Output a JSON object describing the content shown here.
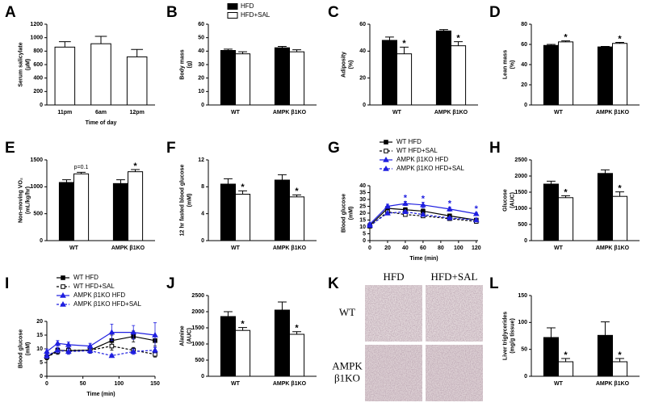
{
  "chart_data": [
    {
      "panel": "A",
      "type": "bar",
      "ylabel": [
        "Serum salicylate",
        "(µM)"
      ],
      "xlabel": "Time of day",
      "categories": [
        "11pm",
        "6am",
        "12pm"
      ],
      "values": [
        860,
        910,
        715
      ],
      "errors": [
        80,
        110,
        110
      ],
      "color": "#ffffff",
      "ylim": [
        0,
        1200
      ],
      "yticks": [
        0,
        200,
        400,
        600,
        800,
        1000,
        1200
      ]
    },
    {
      "panel": "B",
      "type": "bar",
      "ylabel": [
        "Body mass",
        "(g)"
      ],
      "categories": [
        "WT",
        "AMPK β1KO"
      ],
      "series": [
        {
          "name": "HFD",
          "color": "#000000",
          "values": [
            40.5,
            42.5
          ],
          "errors": [
            1,
            1
          ]
        },
        {
          "name": "HFD+SAL",
          "color": "#ffffff",
          "values": [
            38,
            39.5
          ],
          "errors": [
            1.5,
            1.5
          ]
        }
      ],
      "ylim": [
        0,
        60
      ],
      "yticks": [
        0,
        10,
        20,
        30,
        40,
        50,
        60
      ],
      "legend": "top"
    },
    {
      "panel": "C",
      "type": "bar",
      "ylabel": [
        "Adiposity",
        "(%)"
      ],
      "categories": [
        "WT",
        "AMPK β1KO"
      ],
      "series": [
        {
          "color": "#000000",
          "values": [
            48,
            55
          ],
          "errors": [
            2.5,
            1
          ]
        },
        {
          "color": "#ffffff",
          "values": [
            38,
            44
          ],
          "errors": [
            5,
            3
          ]
        }
      ],
      "ylim": [
        0,
        60
      ],
      "yticks": [
        0,
        20,
        40,
        60
      ],
      "annotations": [
        {
          "text": "*",
          "category": "WT"
        },
        {
          "text": "*",
          "category": "AMPK β1KO"
        }
      ]
    },
    {
      "panel": "D",
      "type": "bar",
      "ylabel": [
        "Lean mass",
        "(%)"
      ],
      "categories": [
        "WT",
        "AMPK β1KO"
      ],
      "series": [
        {
          "color": "#000000",
          "values": [
            59,
            57.5
          ],
          "errors": [
            1,
            0.5
          ]
        },
        {
          "color": "#ffffff",
          "values": [
            62.5,
            61
          ],
          "errors": [
            1,
            1
          ]
        }
      ],
      "ylim": [
        0,
        80
      ],
      "yticks": [
        0,
        20,
        40,
        60,
        80
      ],
      "annotations": [
        {
          "text": "*",
          "category": "WT"
        },
        {
          "text": "*",
          "category": "AMPK β1KO"
        }
      ]
    },
    {
      "panel": "E",
      "type": "bar",
      "ylabel": [
        "Non-moving VO₂",
        "(mL/kg/hr)"
      ],
      "categories": [
        "WT",
        "AMPK β1KO"
      ],
      "series": [
        {
          "color": "#000000",
          "values": [
            1080,
            1060
          ],
          "errors": [
            50,
            70
          ]
        },
        {
          "color": "#ffffff",
          "values": [
            1240,
            1280
          ],
          "errors": [
            30,
            40
          ]
        }
      ],
      "ylim": [
        0,
        1500
      ],
      "yticks": [
        0,
        500,
        1000,
        1500
      ],
      "annotations": [
        {
          "text": "p=0.1",
          "category": "WT"
        },
        {
          "text": "*",
          "category": "AMPK β1KO"
        }
      ]
    },
    {
      "panel": "F",
      "type": "bar",
      "ylabel": [
        "12 hr fasted blood glucose",
        "(mM)"
      ],
      "categories": [
        "WT",
        "AMPK β1KO"
      ],
      "series": [
        {
          "color": "#000000",
          "values": [
            8.4,
            9.0
          ],
          "errors": [
            0.8,
            0.8
          ]
        },
        {
          "color": "#ffffff",
          "values": [
            6.9,
            6.5
          ],
          "errors": [
            0.5,
            0.3
          ]
        }
      ],
      "ylim": [
        0,
        12
      ],
      "yticks": [
        0,
        4,
        8,
        12
      ],
      "annotations": [
        {
          "text": "*",
          "category": "WT"
        },
        {
          "text": "*",
          "category": "AMPK β1KO"
        }
      ]
    },
    {
      "panel": "G",
      "type": "line",
      "ylabel": [
        "Blood glucose",
        "(mM)"
      ],
      "xlabel": "Time (min)",
      "x": [
        0,
        20,
        40,
        60,
        90,
        120
      ],
      "series": [
        {
          "name": "WT HFD",
          "color": "#000000",
          "marker": "square",
          "filled": true,
          "dash": false,
          "values": [
            11,
            23.5,
            22.5,
            21.5,
            18,
            15
          ],
          "errors": [
            1,
            1,
            1.5,
            1.5,
            1.5,
            1
          ]
        },
        {
          "name": "WT HFD+SAL",
          "color": "#000000",
          "marker": "square",
          "filled": false,
          "dash": true,
          "values": [
            10.5,
            21,
            19,
            18,
            16,
            14
          ],
          "errors": [
            1,
            1,
            1,
            1,
            1,
            1
          ]
        },
        {
          "name": "AMPK β1KO HFD",
          "color": "#1f1fe0",
          "marker": "triangle",
          "filled": true,
          "dash": false,
          "values": [
            12,
            25,
            27,
            26,
            23,
            19.5
          ],
          "errors": [
            1,
            1.5,
            1.5,
            2,
            1.5,
            1
          ]
        },
        {
          "name": "AMPK β1KO HFD+SAL",
          "color": "#1f1fe0",
          "marker": "triangle",
          "filled": true,
          "dash": true,
          "values": [
            11,
            20,
            21,
            19,
            16.5,
            15
          ],
          "errors": [
            1,
            1,
            1,
            1,
            1,
            1
          ]
        }
      ],
      "xlim": [
        0,
        122
      ],
      "xticks": [
        0,
        20,
        40,
        60,
        80,
        100,
        120
      ],
      "ylim": [
        0,
        40
      ],
      "yticks": [
        0,
        5,
        10,
        15,
        20,
        25,
        30,
        35,
        40
      ],
      "legend": "above",
      "annotations": [
        {
          "text": "*",
          "x": 40
        },
        {
          "text": "*",
          "x": 60
        },
        {
          "text": "*",
          "x": 90
        },
        {
          "text": "*",
          "x": 120
        }
      ]
    },
    {
      "panel": "H",
      "type": "bar",
      "ylabel": [
        "Glucose",
        "(AUC)"
      ],
      "categories": [
        "WT",
        "AMPK β1KO"
      ],
      "series": [
        {
          "color": "#000000",
          "values": [
            1750,
            2080
          ],
          "errors": [
            90,
            110
          ]
        },
        {
          "color": "#ffffff",
          "values": [
            1330,
            1370
          ],
          "errors": [
            60,
            140
          ]
        }
      ],
      "ylim": [
        0,
        2500
      ],
      "yticks": [
        0,
        500,
        1000,
        1500,
        2000,
        2500
      ],
      "annotations": [
        {
          "text": "*",
          "category": "WT"
        },
        {
          "text": "*",
          "category": "AMPK β1KO"
        }
      ]
    },
    {
      "panel": "I",
      "type": "line",
      "ylabel": [
        "Blood glucose",
        "(mM)"
      ],
      "xlabel": "Time (min)",
      "x": [
        0,
        15,
        30,
        60,
        90,
        120,
        150
      ],
      "series": [
        {
          "name": "WT HFD",
          "color": "#000000",
          "marker": "square",
          "filled": true,
          "dash": false,
          "values": [
            7,
            9.5,
            9.3,
            9.5,
            13,
            14.5,
            13
          ],
          "errors": [
            1,
            1,
            1,
            1,
            2,
            2,
            2
          ]
        },
        {
          "name": "WT HFD+SAL",
          "color": "#000000",
          "marker": "square",
          "filled": false,
          "dash": true,
          "values": [
            7,
            9,
            9.5,
            9.5,
            11,
            9.5,
            8
          ],
          "errors": [
            1,
            1,
            1,
            1,
            1.5,
            1,
            1
          ]
        },
        {
          "name": "AMPK β1KO HFD",
          "color": "#1f1fe0",
          "marker": "triangle",
          "filled": true,
          "dash": false,
          "values": [
            9,
            12,
            11.5,
            11,
            16,
            16,
            15
          ],
          "errors": [
            1,
            1,
            1,
            1,
            3,
            2.5,
            4.5
          ]
        },
        {
          "name": "AMPK β1KO HFD+SAL",
          "color": "#1f1fe0",
          "marker": "triangle",
          "filled": true,
          "dash": true,
          "values": [
            7.5,
            9.5,
            9,
            9.3,
            7.5,
            9,
            9.5
          ],
          "errors": [
            1,
            1,
            1,
            1,
            0.5,
            1,
            1
          ]
        }
      ],
      "xlim": [
        0,
        150
      ],
      "xticks": [
        0,
        50,
        100,
        150
      ],
      "ylim": [
        0,
        20
      ],
      "yticks": [
        0,
        5,
        10,
        15,
        20
      ],
      "legend": "above"
    },
    {
      "panel": "J",
      "type": "bar",
      "ylabel": [
        "Alanine",
        "(AUC)"
      ],
      "categories": [
        "WT",
        "AMPK β1KO"
      ],
      "series": [
        {
          "color": "#000000",
          "values": [
            1850,
            2050
          ],
          "errors": [
            150,
            250
          ]
        },
        {
          "color": "#ffffff",
          "values": [
            1420,
            1300
          ],
          "errors": [
            90,
            80
          ]
        }
      ],
      "ylim": [
        0,
        2500
      ],
      "yticks": [
        0,
        500,
        1000,
        1500,
        2000,
        2500
      ],
      "annotations": [
        {
          "text": "*",
          "category": "WT"
        },
        {
          "text": "*",
          "category": "AMPK β1KO"
        }
      ]
    },
    {
      "panel": "K",
      "type": "micrograph",
      "columns": [
        "HFD",
        "HFD+SAL"
      ],
      "rows": [
        [
          "WT"
        ],
        [
          "AMPK",
          "β1KO"
        ]
      ]
    },
    {
      "panel": "L",
      "type": "bar",
      "ylabel": [
        "Liver triglycerides",
        "(mg/g tissue)"
      ],
      "categories": [
        "WT",
        "AMPK β1KO"
      ],
      "series": [
        {
          "color": "#000000",
          "values": [
            72,
            76
          ],
          "errors": [
            18,
            25
          ]
        },
        {
          "color": "#ffffff",
          "values": [
            27,
            27
          ],
          "errors": [
            6,
            6
          ]
        }
      ],
      "ylim": [
        0,
        150
      ],
      "yticks": [
        0,
        50,
        100,
        150
      ],
      "annotations": [
        {
          "text": "*",
          "category": "WT"
        },
        {
          "text": "*",
          "category": "AMPK β1KO"
        }
      ]
    }
  ]
}
